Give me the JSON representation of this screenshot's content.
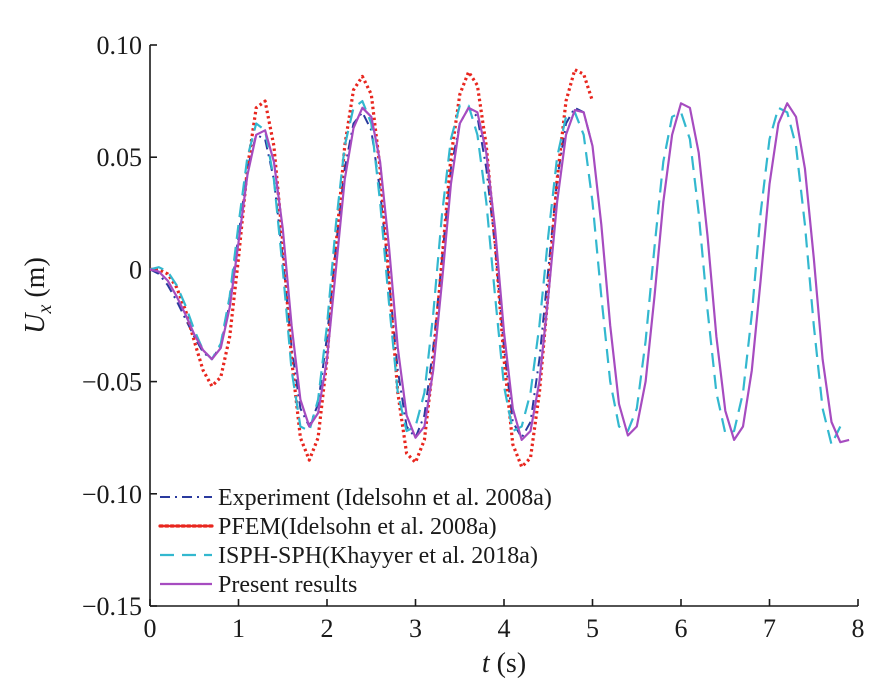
{
  "chart_data": {
    "type": "line",
    "title": "",
    "xlabel": {
      "symbol": "t",
      "unit": " (s)"
    },
    "ylabel": {
      "symbol": "U",
      "subscript": "x",
      "unit": " (m)"
    },
    "xlim": [
      0,
      8
    ],
    "ylim": [
      -0.15,
      0.1
    ],
    "x_ticks": [
      0,
      1,
      2,
      3,
      4,
      5,
      6,
      7,
      8
    ],
    "x_tick_labels": [
      "0",
      "1",
      "2",
      "3",
      "4",
      "5",
      "6",
      "7",
      "8"
    ],
    "y_ticks": [
      -0.15,
      -0.1,
      -0.05,
      0,
      0.05,
      0.1
    ],
    "y_tick_labels": [
      "−0.15",
      "−0.10",
      "−0.05",
      "0",
      "0.05",
      "0.10"
    ],
    "grid": false,
    "legend_position": "bottom-left",
    "series": [
      {
        "name": "Experiment (Idelsohn et al. 2008a)",
        "color": "#2a3a9e",
        "style": "dash-dot",
        "x": [
          0.0,
          0.1,
          0.2,
          0.3,
          0.4,
          0.5,
          0.6,
          0.7,
          0.8,
          0.9,
          1.0,
          1.1,
          1.2,
          1.3,
          1.4,
          1.5,
          1.6,
          1.7,
          1.8,
          1.9,
          2.0,
          2.1,
          2.2,
          2.3,
          2.4,
          2.5,
          2.6,
          2.7,
          2.8,
          2.9,
          3.0,
          3.1,
          3.2,
          3.3,
          3.4,
          3.5,
          3.6,
          3.7,
          3.8,
          3.9,
          4.0,
          4.1,
          4.2,
          4.3,
          4.4,
          4.5,
          4.6,
          4.7,
          4.8,
          4.9,
          5.0
        ],
        "y": [
          0.0,
          -0.002,
          -0.007,
          -0.014,
          -0.022,
          -0.03,
          -0.037,
          -0.04,
          -0.034,
          -0.015,
          0.015,
          0.045,
          0.06,
          0.058,
          0.04,
          0.005,
          -0.035,
          -0.062,
          -0.07,
          -0.06,
          -0.03,
          0.01,
          0.045,
          0.065,
          0.07,
          0.062,
          0.035,
          -0.005,
          -0.045,
          -0.07,
          -0.075,
          -0.065,
          -0.035,
          0.005,
          0.045,
          0.065,
          0.072,
          0.068,
          0.045,
          0.01,
          -0.035,
          -0.068,
          -0.075,
          -0.068,
          -0.04,
          0.0,
          0.04,
          0.065,
          0.072,
          0.07,
          0.055
        ]
      },
      {
        "name": "PFEM(Idelsohn et al. 2008a)",
        "color": "#e8261e",
        "style": "dotted",
        "x": [
          0.0,
          0.1,
          0.2,
          0.3,
          0.4,
          0.5,
          0.6,
          0.7,
          0.8,
          0.9,
          1.0,
          1.1,
          1.2,
          1.3,
          1.4,
          1.5,
          1.6,
          1.7,
          1.8,
          1.9,
          2.0,
          2.1,
          2.2,
          2.3,
          2.4,
          2.5,
          2.6,
          2.7,
          2.8,
          2.9,
          3.0,
          3.1,
          3.2,
          3.3,
          3.4,
          3.5,
          3.6,
          3.7,
          3.8,
          3.9,
          4.0,
          4.1,
          4.2,
          4.3,
          4.4,
          4.5,
          4.6,
          4.7,
          4.8,
          4.9,
          5.0
        ],
        "y": [
          0.0,
          0.0,
          -0.002,
          -0.008,
          -0.018,
          -0.032,
          -0.045,
          -0.052,
          -0.048,
          -0.03,
          0.005,
          0.045,
          0.072,
          0.075,
          0.055,
          0.012,
          -0.04,
          -0.075,
          -0.085,
          -0.075,
          -0.04,
          0.01,
          0.055,
          0.08,
          0.086,
          0.078,
          0.045,
          -0.005,
          -0.055,
          -0.082,
          -0.086,
          -0.076,
          -0.042,
          0.005,
          0.05,
          0.078,
          0.088,
          0.082,
          0.055,
          0.012,
          -0.04,
          -0.078,
          -0.088,
          -0.084,
          -0.055,
          -0.01,
          0.04,
          0.075,
          0.089,
          0.087,
          0.075
        ]
      },
      {
        "name": "ISPH-SPH(Khayyer et al. 2018a)",
        "color": "#33b8cf",
        "style": "dashed",
        "x": [
          0.0,
          0.1,
          0.2,
          0.3,
          0.4,
          0.5,
          0.6,
          0.7,
          0.8,
          0.9,
          1.0,
          1.1,
          1.2,
          1.3,
          1.4,
          1.5,
          1.6,
          1.7,
          1.8,
          1.9,
          2.0,
          2.1,
          2.2,
          2.3,
          2.4,
          2.5,
          2.6,
          2.7,
          2.8,
          2.9,
          3.0,
          3.1,
          3.2,
          3.3,
          3.4,
          3.5,
          3.6,
          3.7,
          3.8,
          3.9,
          4.0,
          4.1,
          4.2,
          4.3,
          4.4,
          4.5,
          4.6,
          4.7,
          4.8,
          4.9,
          5.0,
          5.1,
          5.2,
          5.3,
          5.4,
          5.5,
          5.6,
          5.7,
          5.8,
          5.9,
          6.0,
          6.1,
          6.2,
          6.3,
          6.4,
          6.5,
          6.6,
          6.7,
          6.8,
          6.9,
          7.0,
          7.1,
          7.2,
          7.3,
          7.4,
          7.5,
          7.6,
          7.7,
          7.8
        ],
        "y": [
          0.0,
          0.001,
          -0.001,
          -0.007,
          -0.016,
          -0.027,
          -0.036,
          -0.04,
          -0.033,
          -0.012,
          0.02,
          0.05,
          0.065,
          0.062,
          0.04,
          0.0,
          -0.045,
          -0.07,
          -0.072,
          -0.058,
          -0.025,
          0.02,
          0.055,
          0.072,
          0.075,
          0.065,
          0.03,
          -0.015,
          -0.055,
          -0.072,
          -0.07,
          -0.055,
          -0.02,
          0.025,
          0.058,
          0.073,
          0.073,
          0.06,
          0.03,
          -0.012,
          -0.052,
          -0.072,
          -0.07,
          -0.055,
          -0.025,
          0.015,
          0.05,
          0.068,
          0.07,
          0.06,
          0.03,
          -0.012,
          -0.05,
          -0.07,
          -0.072,
          -0.062,
          -0.032,
          0.01,
          0.048,
          0.068,
          0.07,
          0.058,
          0.025,
          -0.018,
          -0.055,
          -0.073,
          -0.072,
          -0.055,
          -0.02,
          0.025,
          0.058,
          0.072,
          0.07,
          0.055,
          0.02,
          -0.025,
          -0.062,
          -0.078,
          -0.07
        ]
      },
      {
        "name": "Present results",
        "color": "#a64cc0",
        "style": "solid",
        "x": [
          0.0,
          0.1,
          0.2,
          0.3,
          0.4,
          0.5,
          0.6,
          0.7,
          0.8,
          0.9,
          1.0,
          1.1,
          1.2,
          1.3,
          1.4,
          1.5,
          1.6,
          1.7,
          1.8,
          1.9,
          2.0,
          2.1,
          2.2,
          2.3,
          2.4,
          2.5,
          2.6,
          2.7,
          2.8,
          2.9,
          3.0,
          3.1,
          3.2,
          3.3,
          3.4,
          3.5,
          3.6,
          3.7,
          3.8,
          3.9,
          4.0,
          4.1,
          4.2,
          4.3,
          4.4,
          4.5,
          4.6,
          4.7,
          4.8,
          4.9,
          5.0,
          5.1,
          5.2,
          5.3,
          5.4,
          5.5,
          5.6,
          5.7,
          5.8,
          5.9,
          6.0,
          6.1,
          6.2,
          6.3,
          6.4,
          6.5,
          6.6,
          6.7,
          6.8,
          6.9,
          7.0,
          7.1,
          7.2,
          7.3,
          7.4,
          7.5,
          7.6,
          7.7,
          7.8,
          7.9
        ],
        "y": [
          0.0,
          -0.001,
          -0.005,
          -0.012,
          -0.02,
          -0.029,
          -0.036,
          -0.04,
          -0.035,
          -0.017,
          0.012,
          0.042,
          0.06,
          0.062,
          0.048,
          0.018,
          -0.025,
          -0.058,
          -0.07,
          -0.064,
          -0.04,
          0.0,
          0.04,
          0.063,
          0.072,
          0.068,
          0.048,
          0.01,
          -0.035,
          -0.065,
          -0.075,
          -0.07,
          -0.045,
          -0.005,
          0.038,
          0.065,
          0.072,
          0.07,
          0.052,
          0.018,
          -0.028,
          -0.062,
          -0.076,
          -0.072,
          -0.05,
          -0.012,
          0.03,
          0.06,
          0.071,
          0.07,
          0.055,
          0.02,
          -0.025,
          -0.06,
          -0.074,
          -0.07,
          -0.05,
          -0.012,
          0.03,
          0.06,
          0.074,
          0.072,
          0.052,
          0.015,
          -0.03,
          -0.063,
          -0.076,
          -0.07,
          -0.045,
          -0.005,
          0.038,
          0.065,
          0.074,
          0.068,
          0.045,
          0.005,
          -0.04,
          -0.068,
          -0.077,
          -0.076
        ]
      }
    ]
  }
}
